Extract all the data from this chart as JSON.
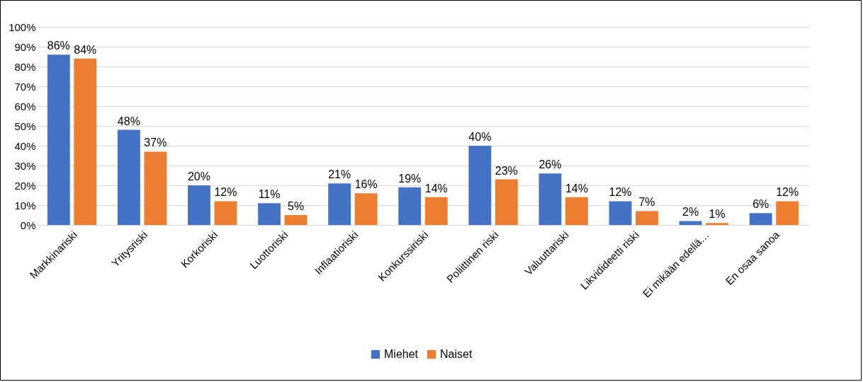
{
  "chart_data": {
    "type": "bar",
    "categories": [
      "Markkinariski",
      "Yritysriski",
      "Korkoriski",
      "Luottoriski",
      "Inflaatioriski",
      "Konkurssiriski",
      "Poliittinen riski",
      "Valuuttariski",
      "Likvidideetti riski",
      "Ei mikään edellä…",
      "En osaa sanoa"
    ],
    "series": [
      {
        "name": "Miehet",
        "color": "#4472c4",
        "values": [
          86,
          48,
          20,
          11,
          21,
          19,
          40,
          26,
          12,
          2,
          6
        ],
        "value_labels": [
          "86%",
          "48%",
          "20%",
          "11%",
          "21%",
          "19%",
          "40%",
          "26%",
          "12%",
          "2%",
          "6%"
        ]
      },
      {
        "name": "Naiset",
        "color": "#ed7d31",
        "values": [
          84,
          37,
          12,
          5,
          16,
          14,
          23,
          14,
          7,
          1,
          12
        ],
        "value_labels": [
          "84%",
          "37%",
          "12%",
          "5%",
          "16%",
          "14%",
          "23%",
          "14%",
          "7%",
          "1%",
          "12%"
        ]
      }
    ],
    "ylim": [
      0,
      100
    ],
    "yticks": [
      {
        "value": 0,
        "label": "0%"
      },
      {
        "value": 10,
        "label": "10%"
      },
      {
        "value": 20,
        "label": "20%"
      },
      {
        "value": 30,
        "label": "30%"
      },
      {
        "value": 40,
        "label": "40%"
      },
      {
        "value": 50,
        "label": "50%"
      },
      {
        "value": 60,
        "label": "60%"
      },
      {
        "value": 70,
        "label": "70%"
      },
      {
        "value": 80,
        "label": "80%"
      },
      {
        "value": 90,
        "label": "90%"
      },
      {
        "value": 100,
        "label": "100%"
      }
    ],
    "grid": "y",
    "legend": "bottom"
  }
}
